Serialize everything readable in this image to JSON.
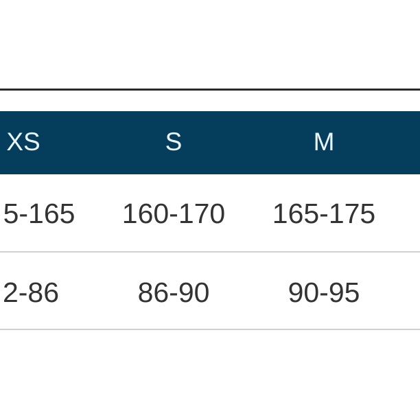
{
  "table": {
    "header": [
      "XS",
      "S",
      "M"
    ],
    "rows": [
      [
        "5-165",
        "160-170",
        "165-175"
      ],
      [
        "2-86",
        "86-90",
        "90-95"
      ]
    ],
    "header_color": "#053d5c"
  }
}
